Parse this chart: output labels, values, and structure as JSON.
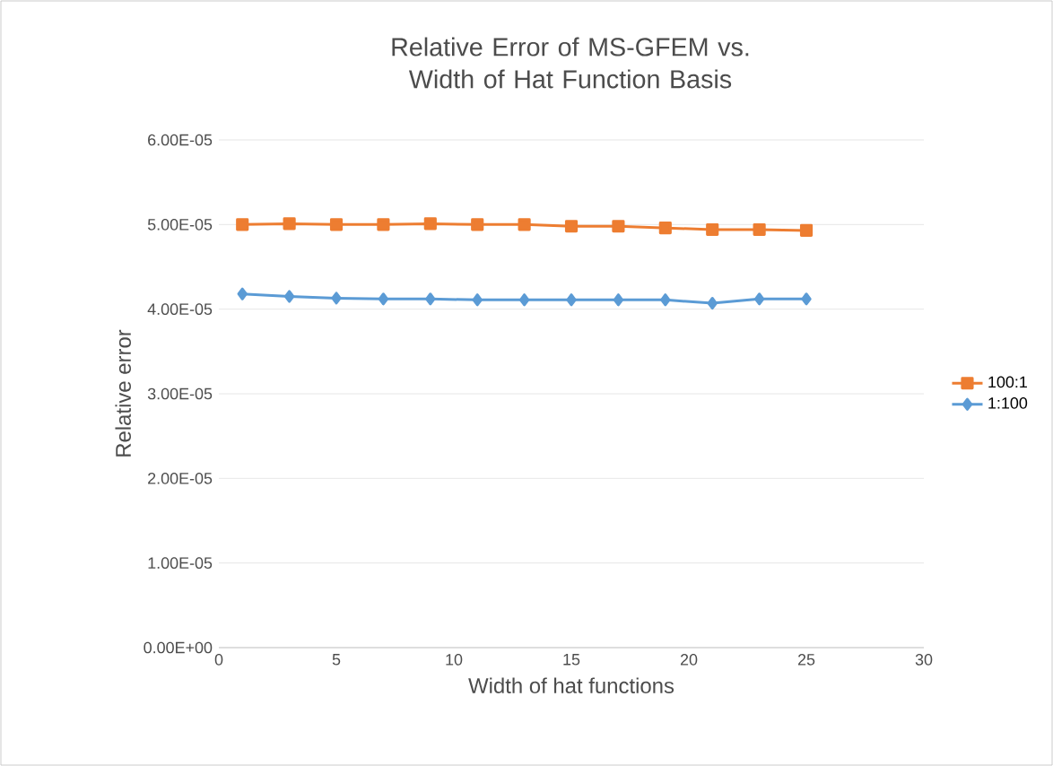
{
  "chart_data": {
    "type": "line",
    "title": "Relative Error of MS-GFEM vs. Width of Hat Function Basis",
    "xlabel": "Width of hat functions",
    "ylabel": "Relative error",
    "x": [
      1,
      3,
      5,
      7,
      9,
      11,
      13,
      15,
      17,
      19,
      21,
      23,
      25
    ],
    "series": [
      {
        "name": "100:1",
        "color": "#ed7d31",
        "marker": "square",
        "values": [
          5e-05,
          5.01e-05,
          5e-05,
          5e-05,
          5.01e-05,
          5e-05,
          5e-05,
          4.98e-05,
          4.98e-05,
          4.96e-05,
          4.94e-05,
          4.94e-05,
          4.93e-05
        ]
      },
      {
        "name": "1:100",
        "color": "#5b9bd5",
        "marker": "diamond",
        "values": [
          4.18e-05,
          4.15e-05,
          4.13e-05,
          4.12e-05,
          4.12e-05,
          4.11e-05,
          4.11e-05,
          4.11e-05,
          4.11e-05,
          4.11e-05,
          4.07e-05,
          4.12e-05,
          4.12e-05
        ]
      }
    ],
    "xlim": [
      0,
      30
    ],
    "xticks": [
      0,
      5,
      10,
      15,
      20,
      25,
      30
    ],
    "ylim": [
      0,
      6e-05
    ],
    "yticks": [
      {
        "value": 0,
        "label": "0.00E+00"
      },
      {
        "value": 1e-05,
        "label": "1.00E-05"
      },
      {
        "value": 2e-05,
        "label": "2.00E-05"
      },
      {
        "value": 3e-05,
        "label": "3.00E-05"
      },
      {
        "value": 4e-05,
        "label": "4.00E-05"
      },
      {
        "value": 5e-05,
        "label": "5.00E-05"
      },
      {
        "value": 6e-05,
        "label": "6.00E-05"
      }
    ],
    "grid": "y",
    "legend": "right"
  }
}
